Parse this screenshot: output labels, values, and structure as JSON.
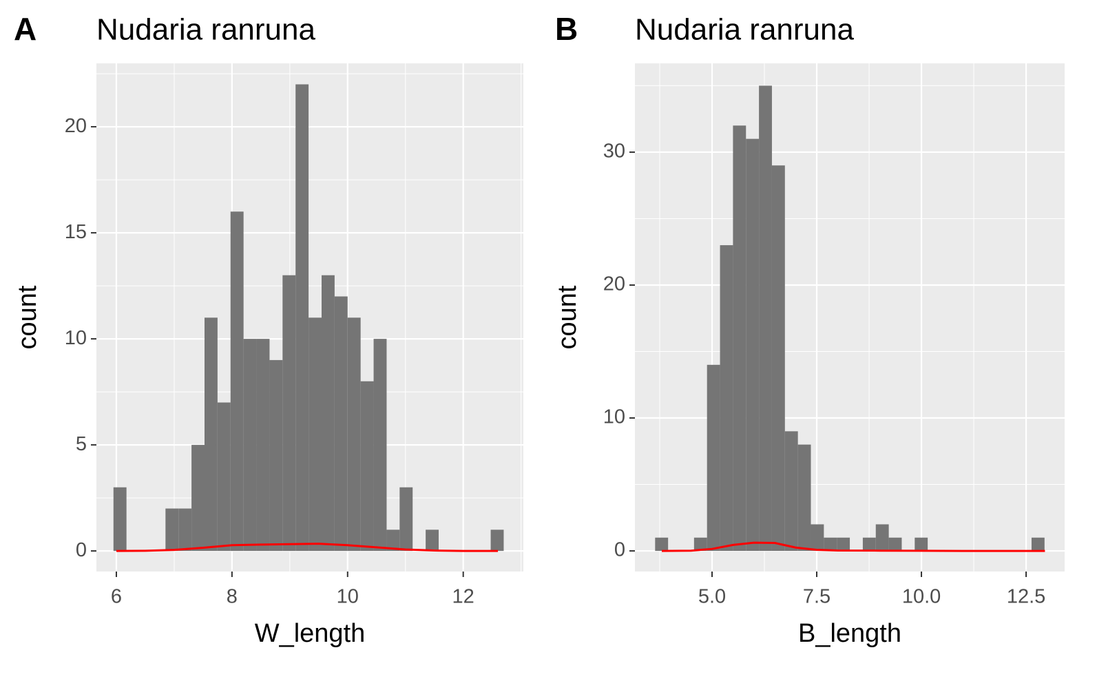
{
  "chart_data": [
    {
      "type": "histogram",
      "label": "A",
      "title": "Nudaria ranruna",
      "x_label": "W_length",
      "y_label": "count",
      "bins": [
        5.95,
        6.175,
        6.4,
        6.625,
        6.85,
        7.075,
        7.3,
        7.525,
        7.75,
        7.975,
        8.2,
        8.425,
        8.65,
        8.875,
        9.1,
        9.325,
        9.55,
        9.775,
        10,
        10.225,
        10.45,
        10.675,
        10.9,
        11.125,
        11.35,
        11.575,
        11.8,
        12.025,
        12.25,
        12.475,
        12.7
      ],
      "values": [
        3,
        0,
        0,
        0,
        2,
        2,
        5,
        11,
        7,
        16,
        10,
        10,
        9,
        13,
        22,
        11,
        13,
        12,
        11,
        8,
        10,
        1,
        3,
        0,
        1,
        0,
        0,
        0,
        0,
        1
      ],
      "color": "#757575",
      "density": {
        "x": [
          6,
          6.5,
          7,
          7.5,
          8,
          8.5,
          9,
          9.5,
          10,
          10.5,
          11,
          11.5,
          12,
          12.6
        ],
        "values": [
          0,
          0.01,
          0.05,
          0.15,
          0.27,
          0.3,
          0.32,
          0.34,
          0.27,
          0.17,
          0.07,
          0.02,
          0,
          0
        ],
        "color": "#ff0000"
      },
      "xlim": [
        5.655,
        13.04
      ],
      "ylim": [
        -0.97,
        22.99
      ],
      "xticks": [
        6,
        8,
        10,
        12
      ],
      "yticks": [
        0,
        5,
        10,
        15,
        20
      ],
      "grid": true
    },
    {
      "type": "histogram",
      "label": "B",
      "title": "Nudaria ranruna",
      "x_label": "B_length",
      "y_label": "count",
      "bins": [
        3.64,
        3.95,
        4.26,
        4.57,
        4.88,
        5.19,
        5.5,
        5.81,
        6.12,
        6.43,
        6.74,
        7.05,
        7.36,
        7.67,
        7.98,
        8.29,
        8.6,
        8.91,
        9.22,
        9.53,
        9.84,
        10.15,
        10.46,
        10.77,
        11.08,
        11.39,
        11.7,
        12.01,
        12.32,
        12.63,
        12.94
      ],
      "values": [
        1,
        0,
        0,
        1,
        14,
        23,
        32,
        31,
        35,
        29,
        9,
        8,
        2,
        1,
        1,
        0,
        1,
        2,
        1,
        0,
        1,
        0,
        0,
        0,
        0,
        0,
        0,
        0,
        0,
        1
      ],
      "color": "#757575",
      "density": {
        "x": [
          3.8,
          4.5,
          5,
          5.5,
          6,
          6.5,
          7,
          7.5,
          8,
          9,
          10,
          11,
          12,
          12.95
        ],
        "values": [
          0,
          0.02,
          0.15,
          0.45,
          0.62,
          0.6,
          0.25,
          0.08,
          0.03,
          0.02,
          0.01,
          0,
          0,
          0
        ],
        "color": "#ff0000"
      },
      "xlim": [
        3.158,
        13.42
      ],
      "ylim": [
        -1.55,
        36.68
      ],
      "xticks": [
        {
          "value": 5,
          "label": "5.0"
        },
        7.5,
        {
          "value": 10,
          "label": "10.0"
        },
        12.5
      ],
      "yticks": [
        0,
        10,
        20,
        30
      ],
      "grid": true
    }
  ]
}
